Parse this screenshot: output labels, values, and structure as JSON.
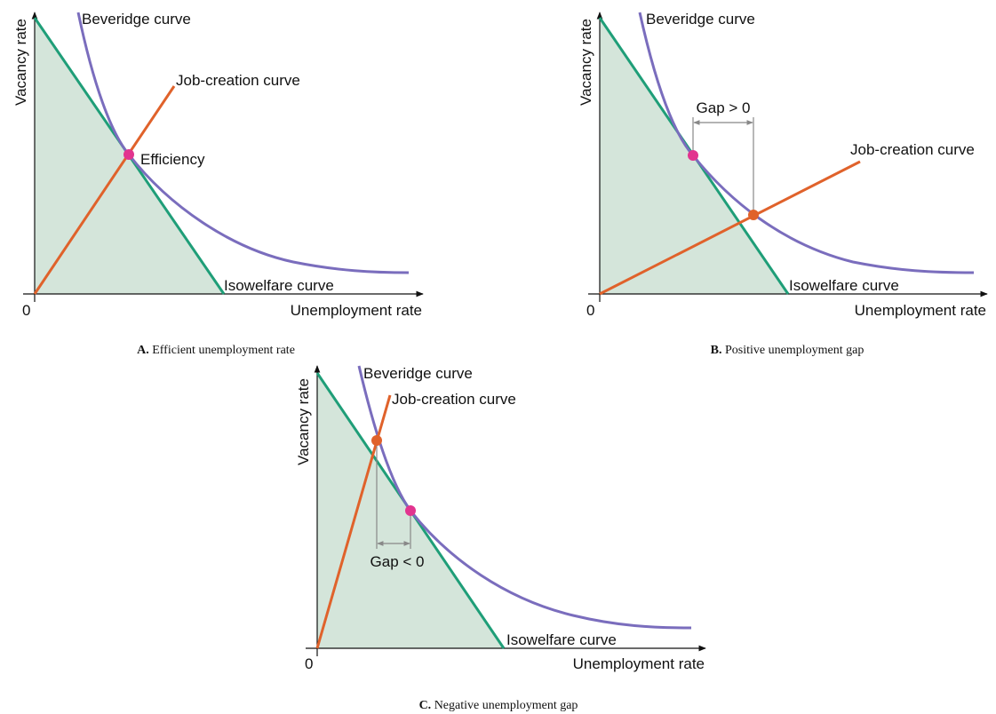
{
  "panels": [
    {
      "y_axis": "Vacancy rate",
      "x_axis": "Unemployment rate",
      "origin": "0",
      "beveridge": "Beveridge curve",
      "job_creation": "Job-creation curve",
      "isowelfare": "Isowelfare curve",
      "point_label": "Efficiency",
      "caption_letter": "A.",
      "caption": "Efficient unemployment rate"
    },
    {
      "y_axis": "Vacancy rate",
      "x_axis": "Unemployment rate",
      "origin": "0",
      "beveridge": "Beveridge curve",
      "job_creation": "Job-creation curve",
      "isowelfare": "Isowelfare curve",
      "gap_label": "Gap > 0",
      "caption_letter": "B.",
      "caption": "Positive unemployment gap"
    },
    {
      "y_axis": "Vacancy rate",
      "x_axis": "Unemployment rate",
      "origin": "0",
      "beveridge": "Beveridge curve",
      "job_creation": "Job-creation curve",
      "isowelfare": "Isowelfare curve",
      "gap_label": "Gap < 0",
      "caption_letter": "C.",
      "caption": "Negative unemployment gap"
    }
  ]
}
